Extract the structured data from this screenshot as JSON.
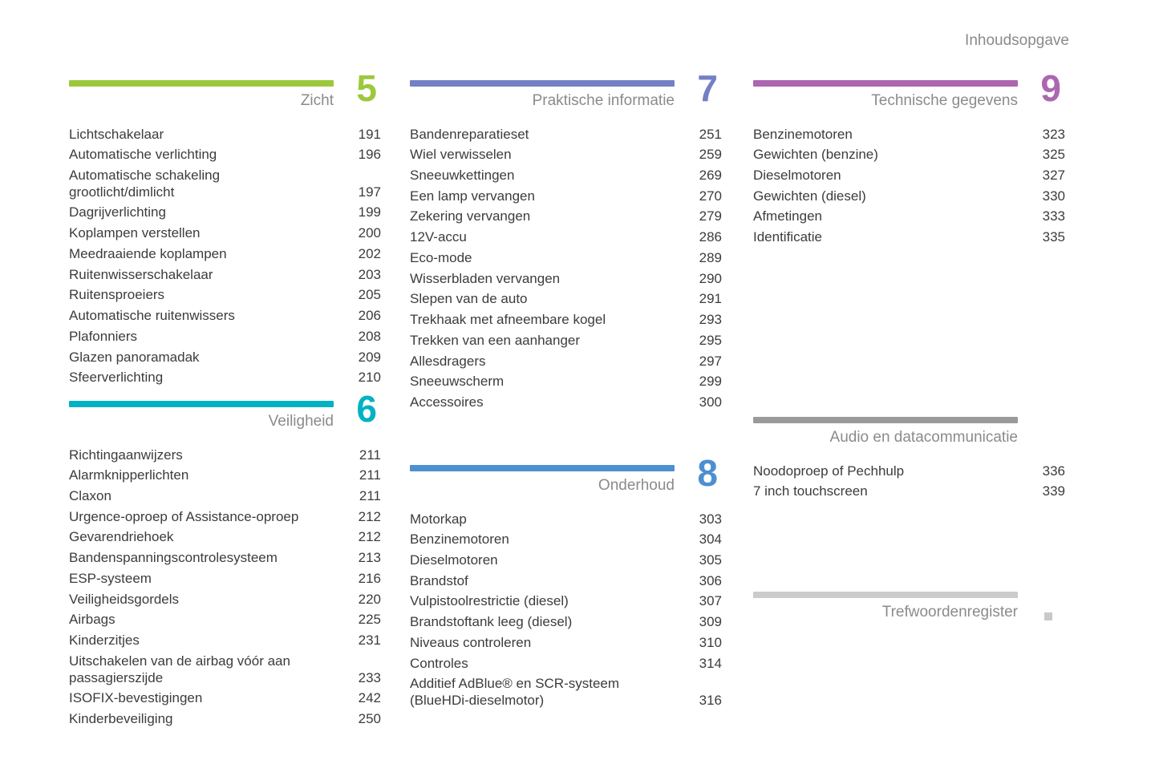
{
  "page": {
    "header": "Inhoudsopgave"
  },
  "colors": {
    "entry_text": "#3c3c3c",
    "muted_text": "#8b8b8b",
    "section5": "#9cc93c",
    "section6": "#00b2c2",
    "section7": "#7480c4",
    "section8": "#4d8fd1",
    "section9": "#ad66b0",
    "audio_bar": "#9a9a9a",
    "index_bar": "#cbcbcb",
    "index_square": "#c9c9c9"
  },
  "columns": [
    {
      "sections": [
        {
          "id": "zicht",
          "number": "5",
          "title": "Zicht",
          "color": "#9cc93c",
          "entries": [
            {
              "label": "Lichtschakelaar",
              "page": "191"
            },
            {
              "label": "Automatische verlichting",
              "page": "196"
            },
            {
              "label": "Automatische schakeling\ngrootlicht/dimlicht",
              "page": "197"
            },
            {
              "label": "Dagrijverlichting",
              "page": "199"
            },
            {
              "label": "Koplampen verstellen",
              "page": "200"
            },
            {
              "label": "Meedraaiende koplampen",
              "page": "202"
            },
            {
              "label": "Ruitenwisserschakelaar",
              "page": "203"
            },
            {
              "label": "Ruitensproeiers",
              "page": "205"
            },
            {
              "label": "Automatische ruitenwissers",
              "page": "206"
            },
            {
              "label": "Plafonniers",
              "page": "208"
            },
            {
              "label": "Glazen panoramadak",
              "page": "209"
            },
            {
              "label": "Sfeerverlichting",
              "page": "210"
            }
          ]
        },
        {
          "id": "veiligheid",
          "number": "6",
          "title": "Veiligheid",
          "color": "#00b2c2",
          "entries": [
            {
              "label": "Richtingaanwijzers",
              "page": "211"
            },
            {
              "label": "Alarmknipperlichten",
              "page": "211"
            },
            {
              "label": "Claxon",
              "page": "211"
            },
            {
              "label": "Urgence-oproep of Assistance-oproep",
              "page": "212"
            },
            {
              "label": "Gevarendriehoek",
              "page": "212"
            },
            {
              "label": "Bandenspanningscontrolesysteem",
              "page": "213"
            },
            {
              "label": "ESP-systeem",
              "page": "216"
            },
            {
              "label": "Veiligheidsgordels",
              "page": "220"
            },
            {
              "label": "Airbags",
              "page": "225"
            },
            {
              "label": "Kinderzitjes",
              "page": "231"
            },
            {
              "label": "Uitschakelen van de airbag vóór aan\npassagierszijde",
              "page": "233"
            },
            {
              "label": "ISOFIX-bevestigingen",
              "page": "242"
            },
            {
              "label": "Kinderbeveiliging",
              "page": "250"
            }
          ]
        }
      ]
    },
    {
      "sections": [
        {
          "id": "praktische-informatie",
          "number": "7",
          "title": "Praktische informatie",
          "color": "#7480c4",
          "entries": [
            {
              "label": "Bandenreparatieset",
              "page": "251"
            },
            {
              "label": "Wiel verwisselen",
              "page": "259"
            },
            {
              "label": "Sneeuwkettingen",
              "page": "269"
            },
            {
              "label": "Een lamp vervangen",
              "page": "270"
            },
            {
              "label": "Zekering vervangen",
              "page": "279"
            },
            {
              "label": "12V-accu",
              "page": "286"
            },
            {
              "label": "Eco-mode",
              "page": "289"
            },
            {
              "label": "Wisserbladen vervangen",
              "page": "290"
            },
            {
              "label": "Slepen van de auto",
              "page": "291"
            },
            {
              "label": "Trekhaak met afneembare kogel",
              "page": "293"
            },
            {
              "label": "Trekken van een aanhanger",
              "page": "295"
            },
            {
              "label": "Allesdragers",
              "page": "297"
            },
            {
              "label": "Sneeuwscherm",
              "page": "299"
            },
            {
              "label": "Accessoires",
              "page": "300"
            }
          ]
        },
        {
          "id": "onderhoud",
          "number": "8",
          "title": "Onderhoud",
          "color": "#4d8fd1",
          "entries": [
            {
              "label": "Motorkap",
              "page": "303"
            },
            {
              "label": "Benzinemotoren",
              "page": "304"
            },
            {
              "label": "Dieselmotoren",
              "page": "305"
            },
            {
              "label": "Brandstof",
              "page": "306"
            },
            {
              "label": "Vulpistoolrestrictie (diesel)",
              "page": "307"
            },
            {
              "label": "Brandstoftank leeg (diesel)",
              "page": "309"
            },
            {
              "label": "Niveaus controleren",
              "page": "310"
            },
            {
              "label": "Controles",
              "page": "314"
            },
            {
              "label": "Additief AdBlue® en SCR-systeem\n(BlueHDi-dieselmotor)",
              "page": "316"
            }
          ]
        }
      ]
    },
    {
      "sections": [
        {
          "id": "technische-gegevens",
          "number": "9",
          "title": "Technische gegevens",
          "color": "#ad66b0",
          "entries": [
            {
              "label": "Benzinemotoren",
              "page": "323"
            },
            {
              "label": "Gewichten (benzine)",
              "page": "325"
            },
            {
              "label": "Dieselmotoren",
              "page": "327"
            },
            {
              "label": "Gewichten (diesel)",
              "page": "330"
            },
            {
              "label": "Afmetingen",
              "page": "333"
            },
            {
              "label": "Identificatie",
              "page": "335"
            }
          ]
        },
        {
          "id": "audio-en-datacommunicatie",
          "title": "Audio en datacommunicatie",
          "color": "#9a9a9a",
          "entries": [
            {
              "label": "Noodoproep of Pechhulp",
              "page": "336"
            },
            {
              "label": "7 inch touchscreen",
              "page": "339"
            }
          ]
        },
        {
          "id": "trefwoordenregister",
          "title": "Trefwoordenregister",
          "color": "#cbcbcb",
          "marker": true,
          "entries": []
        }
      ]
    }
  ]
}
